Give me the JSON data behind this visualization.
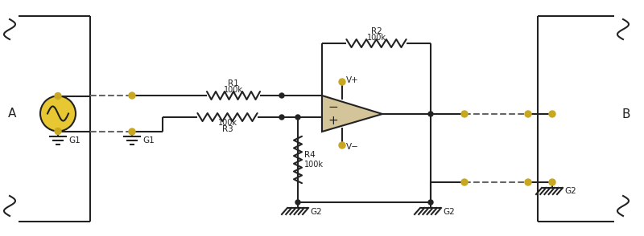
{
  "bg_color": "#ffffff",
  "line_color": "#222222",
  "yellow_fill": "#e8c832",
  "yellow_dot": "#c8a820",
  "opamp_fill": "#d4c49a",
  "dashed_color": "#666666",
  "label_A": "A",
  "label_B": "B",
  "label_G1": "G1",
  "label_G2": "G2",
  "label_R1": "R1",
  "label_R1_val": "100k",
  "label_R2": "R2",
  "label_R2_val": "100k",
  "label_R3": "R3",
  "label_R3_val": "100k",
  "label_R4": "R4",
  "label_R4_val": "100k",
  "label_Vplus": "V+",
  "label_Vminus": "V−"
}
